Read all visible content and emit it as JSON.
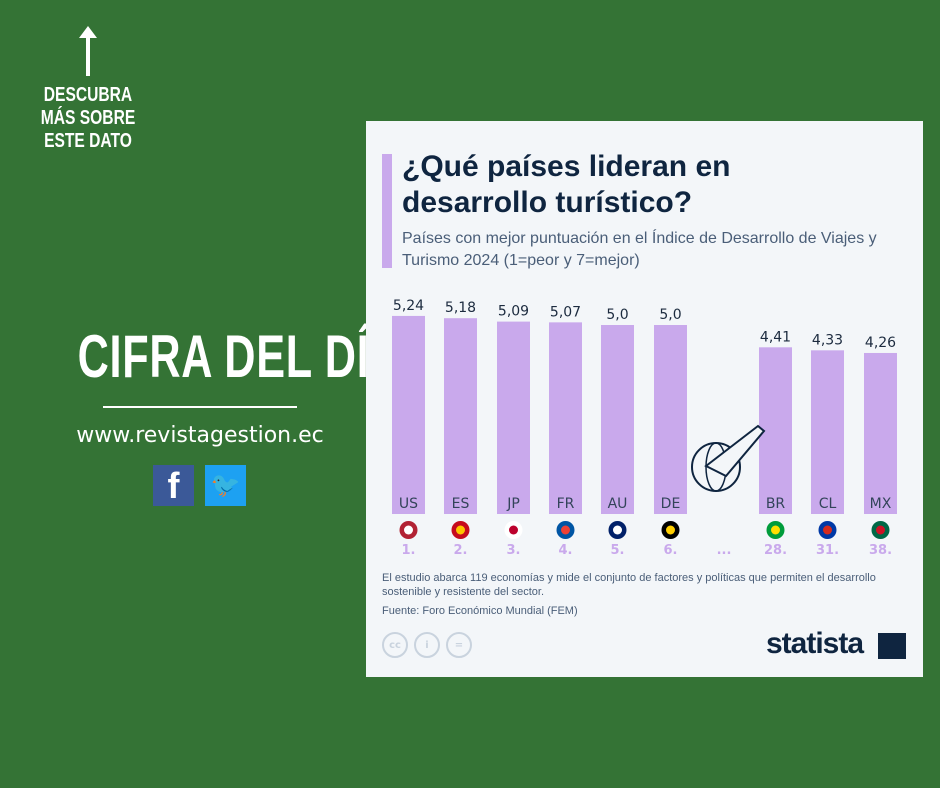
{
  "left_panel": {
    "cta": "DESCUBRA MÁS SOBRE ESTE DATO",
    "headline": "CIFRA DEL DÍA",
    "url": "www.revistagestion.ec",
    "social": [
      "facebook-icon",
      "twitter-icon"
    ]
  },
  "colors": {
    "background": "#347335",
    "bar": "#c9a9ec",
    "title": "#0f2540",
    "rank": "#c9a9ec"
  },
  "chart_data": {
    "type": "bar",
    "title": "¿Qué países lideran en desarrollo turístico?",
    "subtitle": "Países con mejor puntuación en el Índice de Desarrollo de Viajes y Turismo 2024 (1=peor y 7=mejor)",
    "categories": [
      "US",
      "ES",
      "JP",
      "FR",
      "AU",
      "DE",
      "BR",
      "CL",
      "MX"
    ],
    "values": [
      5.24,
      5.18,
      5.09,
      5.07,
      5.0,
      5.0,
      4.41,
      4.33,
      4.26
    ],
    "value_labels": [
      "5,24",
      "5,18",
      "5,09",
      "5,07",
      "5,0",
      "5,0",
      "4,41",
      "4,33",
      "4,26"
    ],
    "ranks": [
      "1.",
      "2.",
      "3.",
      "4.",
      "5.",
      "6.",
      "28.",
      "31.",
      "38."
    ],
    "gap_label": "...",
    "ylim": [
      0,
      7
    ],
    "grid": false,
    "note": "El estudio abarca 119 economías y mide el conjunto de factores y políticas que permiten el desarrollo sostenible y resistente del sector.",
    "source": "Fuente: Foro Económico Mundial (FEM)"
  },
  "footer": {
    "license": [
      "cc",
      "i",
      "="
    ],
    "brand": "statista"
  }
}
